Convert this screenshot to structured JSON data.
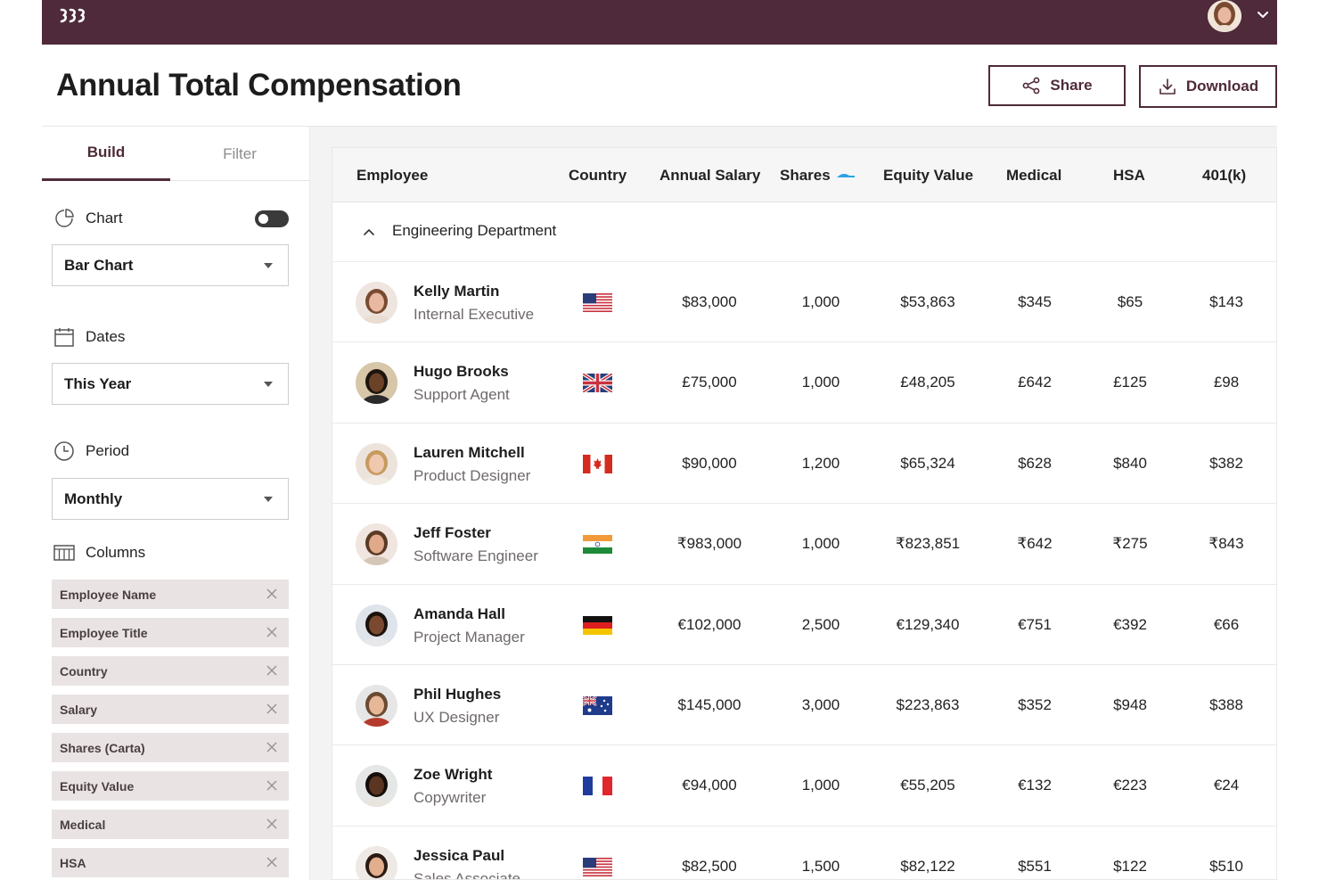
{
  "header": {
    "title": "Annual Total Compensation",
    "share_label": "Share",
    "download_label": "Download"
  },
  "sidebar": {
    "tabs": [
      {
        "label": "Build",
        "active": true
      },
      {
        "label": "Filter",
        "active": false
      }
    ],
    "chart": {
      "label": "Chart",
      "toggle_on": true,
      "selected": "Bar Chart"
    },
    "dates": {
      "label": "Dates",
      "selected": "This Year"
    },
    "period": {
      "label": "Period",
      "selected": "Monthly"
    },
    "columns": {
      "label": "Columns",
      "chips": [
        "Employee Name",
        "Employee Title",
        "Country",
        "Salary",
        "Shares (Carta)",
        "Equity Value",
        "Medical",
        "HSA"
      ]
    }
  },
  "table": {
    "headers": [
      "Employee",
      "Country",
      "Annual Salary",
      "Shares",
      "Equity Value",
      "Medical",
      "HSA",
      "401(k)"
    ],
    "sorted_column": "Shares",
    "group": "Engineering Department",
    "rows": [
      {
        "name": "Kelly Martin",
        "title": "Internal Executive",
        "country": "us",
        "salary": "$83,000",
        "shares": "1,000",
        "equity": "$53,863",
        "medical": "$345",
        "hsa": "$65",
        "k401": "$143",
        "skin": "#e8b9a0",
        "hair": "#7a4a30",
        "shirt": "#e9ddd3",
        "bg": "#efe5e0"
      },
      {
        "name": "Hugo Brooks",
        "title": "Support Agent",
        "country": "uk",
        "salary": "£75,000",
        "shares": "1,000",
        "equity": "£48,205",
        "medical": "£642",
        "hsa": "£125",
        "k401": "£98",
        "skin": "#6b4228",
        "hair": "#1d140e",
        "shirt": "#2a2a2a",
        "bg": "#d7c6a8"
      },
      {
        "name": "Lauren Mitchell",
        "title": "Product Designer",
        "country": "ca",
        "salary": "$90,000",
        "shares": "1,200",
        "equity": "$65,324",
        "medical": "$628",
        "hsa": "$840",
        "k401": "$382",
        "skin": "#efc8ae",
        "hair": "#c79a5f",
        "shirt": "#f1ebe3",
        "bg": "#ece4dc"
      },
      {
        "name": "Jeff Foster",
        "title": "Software Engineer",
        "country": "in",
        "salary": "₹983,000",
        "shares": "1,000",
        "equity": "₹823,851",
        "medical": "₹642",
        "hsa": "₹275",
        "k401": "₹843",
        "skin": "#e0a98a",
        "hair": "#5a3a25",
        "shirt": "#d4c7b7",
        "bg": "#f0e5df"
      },
      {
        "name": "Amanda Hall",
        "title": "Project Manager",
        "country": "de",
        "salary": "€102,000",
        "shares": "2,500",
        "equity": "€129,340",
        "medical": "€751",
        "hsa": "€392",
        "k401": "€66",
        "skin": "#7a4a30",
        "hair": "#1c120c",
        "shirt": "#e8e8ea",
        "bg": "#dfe3ea"
      },
      {
        "name": "Phil Hughes",
        "title": "UX Designer",
        "country": "au",
        "salary": "$145,000",
        "shares": "3,000",
        "equity": "$223,863",
        "medical": "$352",
        "hsa": "$948",
        "k401": "$388",
        "skin": "#e7b898",
        "hair": "#6a4a32",
        "shirt": "#b53a2c",
        "bg": "#e6e6e6"
      },
      {
        "name": "Zoe Wright",
        "title": "Copywriter",
        "country": "fr",
        "salary": "€94,000",
        "shares": "1,000",
        "equity": "€55,205",
        "medical": "€132",
        "hsa": "€223",
        "k401": "€24",
        "skin": "#5a3522",
        "hair": "#140d09",
        "shirt": "#e8e4de",
        "bg": "#e4e7e5"
      },
      {
        "name": "Jessica Paul",
        "title": "Sales Associate",
        "country": "us",
        "salary": "$82,500",
        "shares": "1,500",
        "equity": "$82,122",
        "medical": "$551",
        "hsa": "$122",
        "k401": "$510",
        "skin": "#e1ae8e",
        "hair": "#2b1a12",
        "shirt": "#efece7",
        "bg": "#eee9e4"
      }
    ]
  },
  "colors": {
    "brand": "#4f2a3a",
    "chip_bg": "#e9e3e4",
    "sort_accent": "#2aa3e0"
  }
}
